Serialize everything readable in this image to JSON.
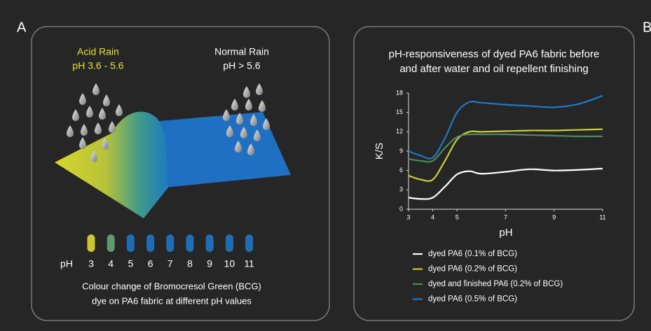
{
  "panel_a": {
    "label": "A",
    "acid_rain": {
      "title": "Acid Rain",
      "ph": "pH 3.6 - 5.6"
    },
    "normal_rain": {
      "title": "Normal Rain",
      "ph": "pH > 5.6"
    },
    "ph_label": "pH",
    "swatches": [
      {
        "label": "3",
        "color": "#c9c62f"
      },
      {
        "label": "4",
        "color": "#5e9a6b"
      },
      {
        "label": "5",
        "color": "#1f6db5"
      },
      {
        "label": "6",
        "color": "#1f6db5"
      },
      {
        "label": "7",
        "color": "#1f6db5"
      },
      {
        "label": "8",
        "color": "#1f6db5"
      },
      {
        "label": "9",
        "color": "#1f6db5"
      },
      {
        "label": "10",
        "color": "#1f6db5"
      },
      {
        "label": "11",
        "color": "#1f6db5"
      }
    ],
    "caption": [
      "Colour change of Bromocresol Green (BCG)",
      "dye on PA6 fabric at different pH values"
    ]
  },
  "panel_b": {
    "label": "B"
  },
  "chart_data": {
    "type": "line",
    "title": [
      "pH-responsiveness of dyed PA6 fabric before",
      "and after water and oil repellent finishing"
    ],
    "x_label": "pH",
    "y_label": "K/S",
    "x": [
      3,
      3.5,
      4,
      4.5,
      5,
      5.5,
      6,
      7,
      8,
      9,
      10,
      11
    ],
    "xlim": [
      3,
      11
    ],
    "xticks": [
      3,
      4,
      5,
      7,
      9,
      11
    ],
    "ylim": [
      0,
      18
    ],
    "yticks": [
      0,
      3,
      6,
      9,
      12,
      15,
      18
    ],
    "series": [
      {
        "name": "dyed PA6 (0.1% of BCG)",
        "color": "#ffffff",
        "values": [
          1.8,
          1.6,
          1.8,
          3.5,
          5.4,
          5.9,
          5.5,
          5.8,
          6.2,
          6.0,
          6.1,
          6.3
        ]
      },
      {
        "name": "dyed PA6 (0.2% of BCG)",
        "color": "#c8cf3a",
        "values": [
          5.2,
          4.6,
          4.6,
          7.5,
          10.8,
          12.0,
          12.0,
          12.1,
          12.2,
          12.2,
          12.3,
          12.4
        ]
      },
      {
        "name": "dyed and finished PA6 (0.2% of BCG)",
        "color": "#4f8a5c",
        "values": [
          7.8,
          7.5,
          7.5,
          9.5,
          11.2,
          11.6,
          11.6,
          11.6,
          11.5,
          11.4,
          11.3,
          11.3
        ]
      },
      {
        "name": "dyed PA6 (0.5% of BCG)",
        "color": "#1f78c8",
        "values": [
          9.0,
          8.3,
          8.0,
          11.0,
          15.0,
          16.6,
          16.5,
          16.2,
          16.0,
          15.8,
          16.3,
          17.6
        ]
      }
    ]
  }
}
